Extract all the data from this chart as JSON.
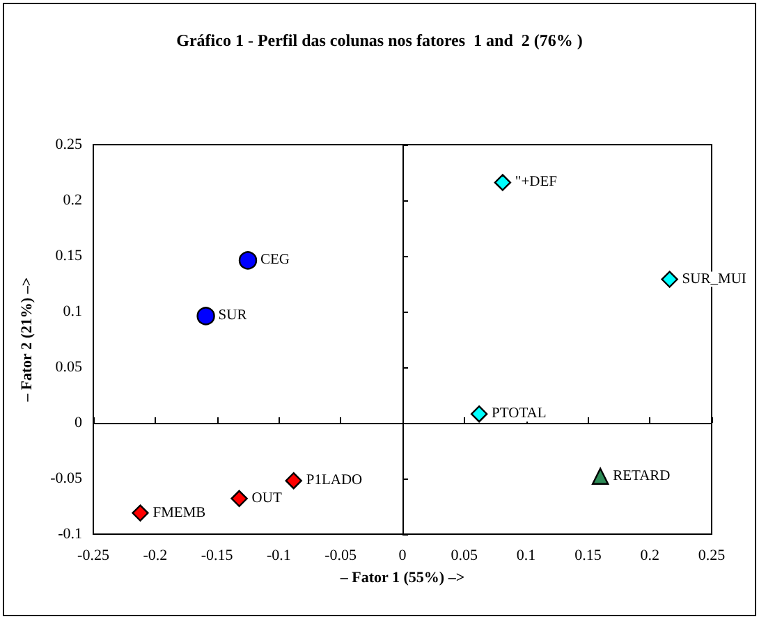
{
  "chart_data": {
    "type": "scatter",
    "title": "Gráfico 1 - Perfil das colunas nos fatores  1 and  2 (76% )",
    "xlabel": "– Fator 1 (55%) –>",
    "ylabel": "– Fator 2 (21%) –>",
    "xlim": [
      -0.25,
      0.25
    ],
    "xticks": [
      -0.25,
      -0.2,
      -0.15,
      -0.1,
      -0.05,
      0,
      0.05,
      0.1,
      0.15,
      0.2,
      0.25
    ],
    "ylim": [
      -0.1,
      0.25
    ],
    "yticks": [
      -0.1,
      -0.05,
      0,
      0.05,
      0.1,
      0.15,
      0.2,
      0.25
    ],
    "series": [
      {
        "color": "#0000ff",
        "marker": "circle",
        "x": [
          -0.159,
          -0.125
        ],
        "values": [
          0.096,
          0.146
        ]
      },
      {
        "color": "#ff0000",
        "marker": "diamond",
        "x": [
          -0.088,
          -0.132,
          -0.212
        ],
        "values": [
          -0.052,
          -0.068,
          -0.081
        ]
      },
      {
        "color": "#00ffff",
        "marker": "diamond",
        "x": [
          0.081,
          0.216,
          0.062
        ],
        "values": [
          0.216,
          0.129,
          0.008
        ]
      },
      {
        "color": "#2e8b57",
        "marker": "triangle",
        "x": [
          0.16
        ],
        "values": [
          -0.048
        ]
      }
    ],
    "annotations": [
      {
        "text": "SUR",
        "x": -0.159,
        "y": 0.096
      },
      {
        "text": "CEG",
        "x": -0.125,
        "y": 0.146
      },
      {
        "text": "P1LADO",
        "x": -0.088,
        "y": -0.052
      },
      {
        "text": "OUT",
        "x": -0.132,
        "y": -0.068
      },
      {
        "text": "FMEMB",
        "x": -0.212,
        "y": -0.081
      },
      {
        "text": "\"+DEF",
        "x": 0.081,
        "y": 0.216
      },
      {
        "text": "SUR_MUI",
        "x": 0.216,
        "y": 0.129
      },
      {
        "text": "PTOTAL",
        "x": 0.062,
        "y": 0.008
      },
      {
        "text": "RETARD",
        "x": 0.16,
        "y": -0.048
      }
    ]
  }
}
